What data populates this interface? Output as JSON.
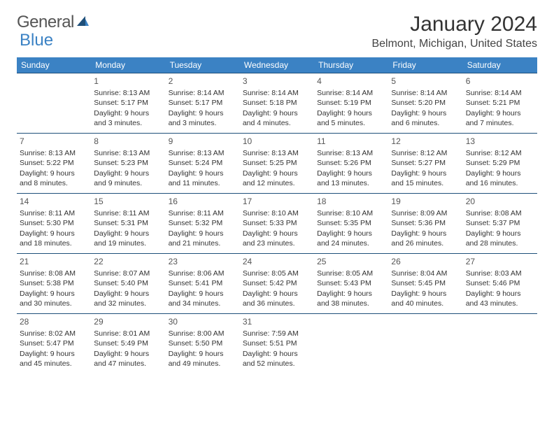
{
  "logo": {
    "text1": "General",
    "text2": "Blue"
  },
  "title": "January 2024",
  "location": "Belmont, Michigan, United States",
  "colors": {
    "header_bg": "#3b82c4",
    "header_text": "#ffffff",
    "row_border": "#1e4f7a",
    "body_text": "#333333",
    "daynum_text": "#555555",
    "logo_gray": "#555555",
    "logo_blue": "#3b82c4",
    "background": "#ffffff"
  },
  "fonts": {
    "title_size": 30,
    "location_size": 16,
    "header_size": 12,
    "daynum_size": 12,
    "body_size": 10.5
  },
  "weekdays": [
    "Sunday",
    "Monday",
    "Tuesday",
    "Wednesday",
    "Thursday",
    "Friday",
    "Saturday"
  ],
  "weeks": [
    [
      null,
      {
        "n": "1",
        "sr": "Sunrise: 8:13 AM",
        "ss": "Sunset: 5:17 PM",
        "d1": "Daylight: 9 hours",
        "d2": "and 3 minutes."
      },
      {
        "n": "2",
        "sr": "Sunrise: 8:14 AM",
        "ss": "Sunset: 5:17 PM",
        "d1": "Daylight: 9 hours",
        "d2": "and 3 minutes."
      },
      {
        "n": "3",
        "sr": "Sunrise: 8:14 AM",
        "ss": "Sunset: 5:18 PM",
        "d1": "Daylight: 9 hours",
        "d2": "and 4 minutes."
      },
      {
        "n": "4",
        "sr": "Sunrise: 8:14 AM",
        "ss": "Sunset: 5:19 PM",
        "d1": "Daylight: 9 hours",
        "d2": "and 5 minutes."
      },
      {
        "n": "5",
        "sr": "Sunrise: 8:14 AM",
        "ss": "Sunset: 5:20 PM",
        "d1": "Daylight: 9 hours",
        "d2": "and 6 minutes."
      },
      {
        "n": "6",
        "sr": "Sunrise: 8:14 AM",
        "ss": "Sunset: 5:21 PM",
        "d1": "Daylight: 9 hours",
        "d2": "and 7 minutes."
      }
    ],
    [
      {
        "n": "7",
        "sr": "Sunrise: 8:13 AM",
        "ss": "Sunset: 5:22 PM",
        "d1": "Daylight: 9 hours",
        "d2": "and 8 minutes."
      },
      {
        "n": "8",
        "sr": "Sunrise: 8:13 AM",
        "ss": "Sunset: 5:23 PM",
        "d1": "Daylight: 9 hours",
        "d2": "and 9 minutes."
      },
      {
        "n": "9",
        "sr": "Sunrise: 8:13 AM",
        "ss": "Sunset: 5:24 PM",
        "d1": "Daylight: 9 hours",
        "d2": "and 11 minutes."
      },
      {
        "n": "10",
        "sr": "Sunrise: 8:13 AM",
        "ss": "Sunset: 5:25 PM",
        "d1": "Daylight: 9 hours",
        "d2": "and 12 minutes."
      },
      {
        "n": "11",
        "sr": "Sunrise: 8:13 AM",
        "ss": "Sunset: 5:26 PM",
        "d1": "Daylight: 9 hours",
        "d2": "and 13 minutes."
      },
      {
        "n": "12",
        "sr": "Sunrise: 8:12 AM",
        "ss": "Sunset: 5:27 PM",
        "d1": "Daylight: 9 hours",
        "d2": "and 15 minutes."
      },
      {
        "n": "13",
        "sr": "Sunrise: 8:12 AM",
        "ss": "Sunset: 5:29 PM",
        "d1": "Daylight: 9 hours",
        "d2": "and 16 minutes."
      }
    ],
    [
      {
        "n": "14",
        "sr": "Sunrise: 8:11 AM",
        "ss": "Sunset: 5:30 PM",
        "d1": "Daylight: 9 hours",
        "d2": "and 18 minutes."
      },
      {
        "n": "15",
        "sr": "Sunrise: 8:11 AM",
        "ss": "Sunset: 5:31 PM",
        "d1": "Daylight: 9 hours",
        "d2": "and 19 minutes."
      },
      {
        "n": "16",
        "sr": "Sunrise: 8:11 AM",
        "ss": "Sunset: 5:32 PM",
        "d1": "Daylight: 9 hours",
        "d2": "and 21 minutes."
      },
      {
        "n": "17",
        "sr": "Sunrise: 8:10 AM",
        "ss": "Sunset: 5:33 PM",
        "d1": "Daylight: 9 hours",
        "d2": "and 23 minutes."
      },
      {
        "n": "18",
        "sr": "Sunrise: 8:10 AM",
        "ss": "Sunset: 5:35 PM",
        "d1": "Daylight: 9 hours",
        "d2": "and 24 minutes."
      },
      {
        "n": "19",
        "sr": "Sunrise: 8:09 AM",
        "ss": "Sunset: 5:36 PM",
        "d1": "Daylight: 9 hours",
        "d2": "and 26 minutes."
      },
      {
        "n": "20",
        "sr": "Sunrise: 8:08 AM",
        "ss": "Sunset: 5:37 PM",
        "d1": "Daylight: 9 hours",
        "d2": "and 28 minutes."
      }
    ],
    [
      {
        "n": "21",
        "sr": "Sunrise: 8:08 AM",
        "ss": "Sunset: 5:38 PM",
        "d1": "Daylight: 9 hours",
        "d2": "and 30 minutes."
      },
      {
        "n": "22",
        "sr": "Sunrise: 8:07 AM",
        "ss": "Sunset: 5:40 PM",
        "d1": "Daylight: 9 hours",
        "d2": "and 32 minutes."
      },
      {
        "n": "23",
        "sr": "Sunrise: 8:06 AM",
        "ss": "Sunset: 5:41 PM",
        "d1": "Daylight: 9 hours",
        "d2": "and 34 minutes."
      },
      {
        "n": "24",
        "sr": "Sunrise: 8:05 AM",
        "ss": "Sunset: 5:42 PM",
        "d1": "Daylight: 9 hours",
        "d2": "and 36 minutes."
      },
      {
        "n": "25",
        "sr": "Sunrise: 8:05 AM",
        "ss": "Sunset: 5:43 PM",
        "d1": "Daylight: 9 hours",
        "d2": "and 38 minutes."
      },
      {
        "n": "26",
        "sr": "Sunrise: 8:04 AM",
        "ss": "Sunset: 5:45 PM",
        "d1": "Daylight: 9 hours",
        "d2": "and 40 minutes."
      },
      {
        "n": "27",
        "sr": "Sunrise: 8:03 AM",
        "ss": "Sunset: 5:46 PM",
        "d1": "Daylight: 9 hours",
        "d2": "and 43 minutes."
      }
    ],
    [
      {
        "n": "28",
        "sr": "Sunrise: 8:02 AM",
        "ss": "Sunset: 5:47 PM",
        "d1": "Daylight: 9 hours",
        "d2": "and 45 minutes."
      },
      {
        "n": "29",
        "sr": "Sunrise: 8:01 AM",
        "ss": "Sunset: 5:49 PM",
        "d1": "Daylight: 9 hours",
        "d2": "and 47 minutes."
      },
      {
        "n": "30",
        "sr": "Sunrise: 8:00 AM",
        "ss": "Sunset: 5:50 PM",
        "d1": "Daylight: 9 hours",
        "d2": "and 49 minutes."
      },
      {
        "n": "31",
        "sr": "Sunrise: 7:59 AM",
        "ss": "Sunset: 5:51 PM",
        "d1": "Daylight: 9 hours",
        "d2": "and 52 minutes."
      },
      null,
      null,
      null
    ]
  ]
}
